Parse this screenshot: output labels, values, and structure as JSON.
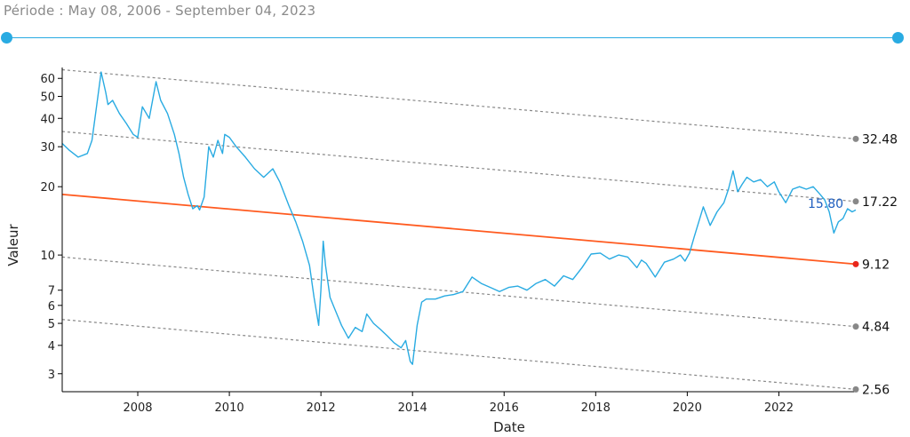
{
  "period_label": "Période : May 08, 2006 - September 04, 2023",
  "colors": {
    "series": "#29abe2",
    "trend": "#ff5a1f",
    "channel": "#888888",
    "endpoint_trend": "#e8261c",
    "endpoint_channel": "#888888",
    "current_label": "#1f5fbf",
    "slider": "#29abe2"
  },
  "chart_data": {
    "type": "line",
    "title": "",
    "xlabel": "Date",
    "ylabel": "Valeur",
    "yscale": "log",
    "xlim": [
      2006.35,
      2023.68
    ],
    "ylim": [
      2.5,
      67
    ],
    "x_ticks": [
      "2008",
      "2010",
      "2012",
      "2014",
      "2016",
      "2018",
      "2020",
      "2022"
    ],
    "y_ticks": [
      "3",
      "4",
      "5",
      "6",
      "7",
      "10",
      "20",
      "30",
      "40",
      "50",
      "60"
    ],
    "grid": false,
    "series": [
      {
        "x": [
          2006.35,
          2006.5,
          2006.7,
          2006.9,
          2007.0,
          2007.1,
          2007.2,
          2007.3,
          2007.35,
          2007.45,
          2007.6,
          2007.75,
          2007.9,
          2008.0,
          2008.1,
          2008.25,
          2008.4,
          2008.5,
          2008.65,
          2008.8,
          2008.9,
          2009.0,
          2009.1,
          2009.2,
          2009.3,
          2009.35,
          2009.45,
          2009.55,
          2009.65,
          2009.75,
          2009.85,
          2009.9,
          2010.0,
          2010.15,
          2010.35,
          2010.55,
          2010.75,
          2010.95,
          2011.1,
          2011.3,
          2011.45,
          2011.6,
          2011.75,
          2011.85,
          2011.95,
          2012.0,
          2012.05,
          2012.1,
          2012.2,
          2012.3,
          2012.45,
          2012.6,
          2012.75,
          2012.9,
          2013.0,
          2013.15,
          2013.3,
          2013.45,
          2013.6,
          2013.75,
          2013.85,
          2013.95,
          2014.0,
          2014.1,
          2014.2,
          2014.3,
          2014.5,
          2014.7,
          2014.9,
          2015.1,
          2015.3,
          2015.5,
          2015.7,
          2015.9,
          2016.1,
          2016.3,
          2016.5,
          2016.7,
          2016.9,
          2017.1,
          2017.3,
          2017.5,
          2017.7,
          2017.9,
          2018.1,
          2018.3,
          2018.5,
          2018.7,
          2018.9,
          2019.0,
          2019.1,
          2019.3,
          2019.5,
          2019.7,
          2019.85,
          2019.95,
          2020.05,
          2020.15,
          2020.25,
          2020.35,
          2020.5,
          2020.65,
          2020.8,
          2020.9,
          2021.0,
          2021.1,
          2021.2,
          2021.3,
          2021.45,
          2021.6,
          2021.75,
          2021.9,
          2022.0,
          2022.15,
          2022.3,
          2022.45,
          2022.6,
          2022.75,
          2022.9,
          2023.0,
          2023.1,
          2023.2,
          2023.3,
          2023.4,
          2023.5,
          2023.6,
          2023.68
        ],
        "values": [
          31,
          29,
          27,
          28,
          32,
          45,
          64,
          52,
          46,
          48,
          42,
          38,
          34,
          33,
          45,
          40,
          58,
          48,
          42,
          34,
          28,
          22,
          18.5,
          16,
          16.5,
          15.8,
          18,
          30,
          27,
          32,
          28,
          34,
          33,
          30,
          27,
          24,
          22,
          24,
          21,
          16.5,
          14,
          11.5,
          9,
          6.5,
          4.9,
          7,
          11.5,
          9,
          6.5,
          5.8,
          4.9,
          4.3,
          4.8,
          4.6,
          5.5,
          5.0,
          4.7,
          4.4,
          4.1,
          3.9,
          4.2,
          3.4,
          3.3,
          4.9,
          6.2,
          6.4,
          6.4,
          6.6,
          6.7,
          6.9,
          8.0,
          7.5,
          7.2,
          6.9,
          7.2,
          7.3,
          7.0,
          7.5,
          7.8,
          7.3,
          8.1,
          7.8,
          8.8,
          10.1,
          10.2,
          9.6,
          10.0,
          9.8,
          8.8,
          9.5,
          9.2,
          8.0,
          9.3,
          9.6,
          10.0,
          9.4,
          10.2,
          12.0,
          14.0,
          16.3,
          13.5,
          15.5,
          17.0,
          19.5,
          23.5,
          19.0,
          20.5,
          22.0,
          21.0,
          21.5,
          20.0,
          21.0,
          19.0,
          17.0,
          19.5,
          20.0,
          19.5,
          20.0,
          18.5,
          17.5,
          15.5,
          12.5,
          14.0,
          14.5,
          16.0,
          15.5,
          15.8
        ]
      }
    ],
    "trend_lines": [
      {
        "role": "channel",
        "start": 65.5,
        "end": 32.48,
        "label": "32.48"
      },
      {
        "role": "channel",
        "start": 35.0,
        "end": 17.22,
        "label": "17.22"
      },
      {
        "role": "trend",
        "start": 18.5,
        "end": 9.12,
        "label": "9.12"
      },
      {
        "role": "channel",
        "start": 9.8,
        "end": 4.84,
        "label": "4.84"
      },
      {
        "role": "channel",
        "start": 5.2,
        "end": 2.56,
        "label": "2.56"
      }
    ],
    "current_value_label": "15.80"
  }
}
